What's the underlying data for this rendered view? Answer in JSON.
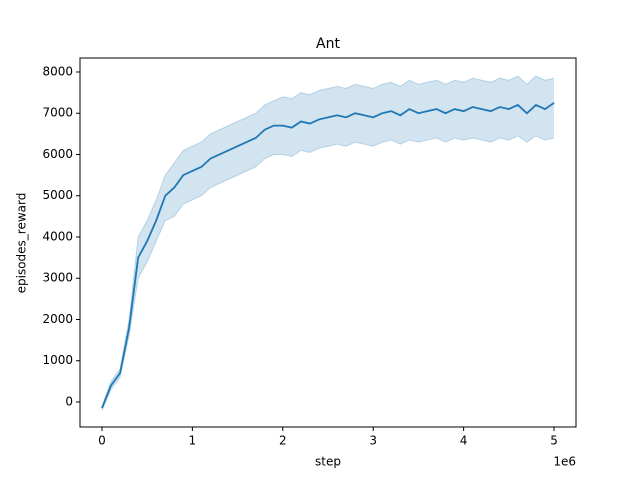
{
  "chart_data": {
    "type": "line",
    "title": "Ant",
    "x_label": "step",
    "y_label": "episodes_reward",
    "x_offset_label": "1e6",
    "x": [
      0,
      100000,
      200000,
      300000,
      400000,
      500000,
      600000,
      700000,
      800000,
      900000,
      1000000,
      1100000,
      1200000,
      1300000,
      1400000,
      1500000,
      1600000,
      1700000,
      1800000,
      1900000,
      2000000,
      2100000,
      2200000,
      2300000,
      2400000,
      2500000,
      2600000,
      2700000,
      2800000,
      2900000,
      3000000,
      3100000,
      3200000,
      3300000,
      3400000,
      3500000,
      3600000,
      3700000,
      3800000,
      3900000,
      4000000,
      4100000,
      4200000,
      4300000,
      4400000,
      4500000,
      4600000,
      4700000,
      4800000,
      4900000,
      5000000
    ],
    "series": [
      {
        "color": "#1f77b4",
        "values": [
          -150,
          400,
          700,
          1800,
          3500,
          3900,
          4400,
          5000,
          5200,
          5500,
          5600,
          5700,
          5900,
          6000,
          6100,
          6200,
          6300,
          6400,
          6600,
          6700,
          6700,
          6650,
          6800,
          6750,
          6850,
          6900,
          6950,
          6900,
          7000,
          6950,
          6900,
          7000,
          7050,
          6950,
          7100,
          7000,
          7050,
          7100,
          7000,
          7100,
          7050,
          7150,
          7100,
          7050,
          7150,
          7100,
          7200,
          7000,
          7200,
          7100,
          7250
        ],
        "lower": [
          -200,
          300,
          600,
          1600,
          3000,
          3400,
          3900,
          4400,
          4500,
          4800,
          4900,
          5000,
          5200,
          5300,
          5400,
          5500,
          5600,
          5700,
          5900,
          6000,
          6000,
          5950,
          6100,
          6050,
          6150,
          6200,
          6250,
          6200,
          6300,
          6250,
          6200,
          6300,
          6350,
          6250,
          6350,
          6300,
          6350,
          6400,
          6300,
          6400,
          6350,
          6400,
          6350,
          6300,
          6400,
          6350,
          6450,
          6300,
          6450,
          6350,
          6400
        ],
        "upper": [
          -100,
          500,
          800,
          2000,
          4000,
          4400,
          4900,
          5500,
          5800,
          6100,
          6200,
          6300,
          6500,
          6600,
          6700,
          6800,
          6900,
          7000,
          7200,
          7300,
          7400,
          7350,
          7500,
          7450,
          7550,
          7600,
          7650,
          7600,
          7700,
          7650,
          7600,
          7700,
          7750,
          7650,
          7800,
          7700,
          7750,
          7800,
          7700,
          7800,
          7750,
          7850,
          7800,
          7750,
          7850,
          7800,
          7900,
          7700,
          7900,
          7800,
          7850
        ]
      }
    ],
    "xlim": [
      -243000,
      5243000
    ],
    "ylim": [
      -606,
      8339
    ],
    "xticks": [
      {
        "value": 0,
        "label": "0"
      },
      {
        "value": 1000000,
        "label": "1"
      },
      {
        "value": 2000000,
        "label": "2"
      },
      {
        "value": 3000000,
        "label": "3"
      },
      {
        "value": 4000000,
        "label": "4"
      },
      {
        "value": 5000000,
        "label": "5"
      }
    ],
    "yticks": [
      0,
      1000,
      2000,
      3000,
      4000,
      5000,
      6000,
      7000,
      8000
    ]
  }
}
